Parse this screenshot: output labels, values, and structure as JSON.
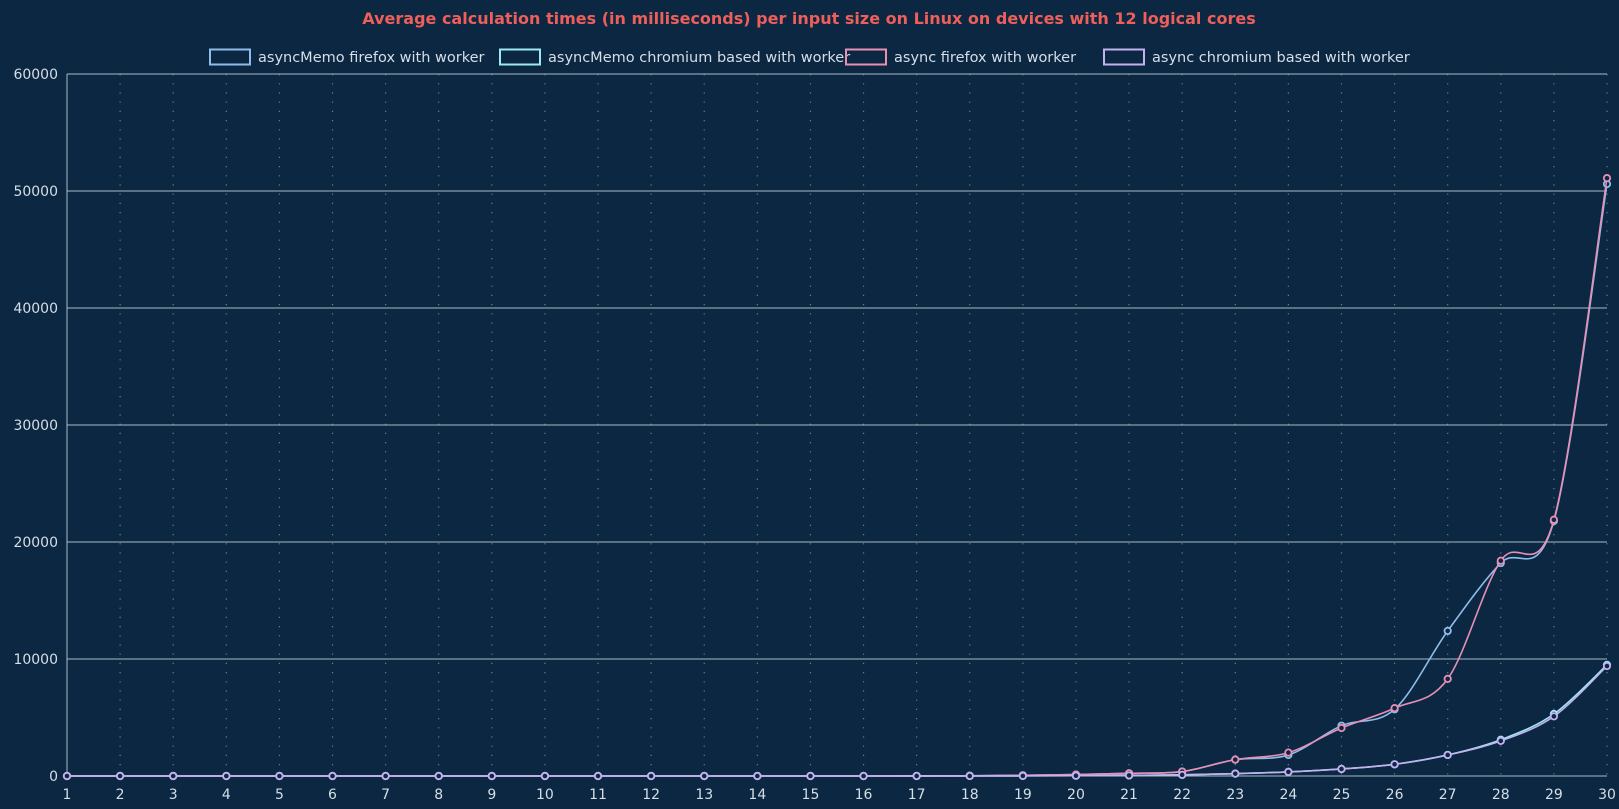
{
  "chart_data": {
    "type": "line",
    "title": "Average calculation times (in milliseconds) per input size on Linux on devices with 12 logical cores",
    "xlabel": "",
    "ylabel": "",
    "x": [
      1,
      2,
      3,
      4,
      5,
      6,
      7,
      8,
      9,
      10,
      11,
      12,
      13,
      14,
      15,
      16,
      17,
      18,
      19,
      20,
      21,
      22,
      23,
      24,
      25,
      26,
      27,
      28,
      29,
      30
    ],
    "xlim": [
      1,
      30
    ],
    "ylim": [
      0,
      60000
    ],
    "yticks": [
      0,
      10000,
      20000,
      30000,
      40000,
      50000,
      60000
    ],
    "grid": {
      "horizontal": "solid",
      "vertical": "dotted"
    },
    "legend_position": "top",
    "series": [
      {
        "name": "asyncMemo firefox with worker",
        "color": "#8fbdea",
        "values": [
          0,
          0,
          0,
          0,
          0,
          0,
          0,
          0,
          0,
          0,
          0,
          0,
          0,
          0,
          0,
          0,
          5,
          20,
          60,
          120,
          230,
          380,
          1400,
          1800,
          4300,
          5700,
          12400,
          18200,
          21800,
          50600
        ]
      },
      {
        "name": "asyncMemo chromium based with worker",
        "color": "#9ee8f2",
        "values": [
          0,
          0,
          0,
          0,
          0,
          0,
          0,
          0,
          0,
          0,
          0,
          0,
          0,
          0,
          0,
          0,
          2,
          5,
          10,
          25,
          50,
          100,
          200,
          350,
          600,
          1000,
          1800,
          3100,
          5300,
          9500
        ]
      },
      {
        "name": "async firefox with worker",
        "color": "#e88fb4",
        "values": [
          0,
          0,
          0,
          0,
          0,
          0,
          0,
          0,
          0,
          0,
          0,
          0,
          0,
          0,
          0,
          0,
          5,
          20,
          60,
          120,
          230,
          380,
          1400,
          2000,
          4100,
          5800,
          8300,
          18400,
          21900,
          51100
        ]
      },
      {
        "name": "async chromium based with worker",
        "color": "#c4b2f0",
        "values": [
          0,
          0,
          0,
          0,
          0,
          0,
          0,
          0,
          0,
          0,
          0,
          0,
          0,
          0,
          0,
          0,
          2,
          5,
          10,
          25,
          50,
          100,
          200,
          350,
          600,
          1000,
          1800,
          3000,
          5100,
          9400
        ]
      }
    ]
  },
  "colors": {
    "background": "#0b2742",
    "title": "#ee5f5b",
    "text": "#d6dee6",
    "grid": "#aab9c8"
  }
}
